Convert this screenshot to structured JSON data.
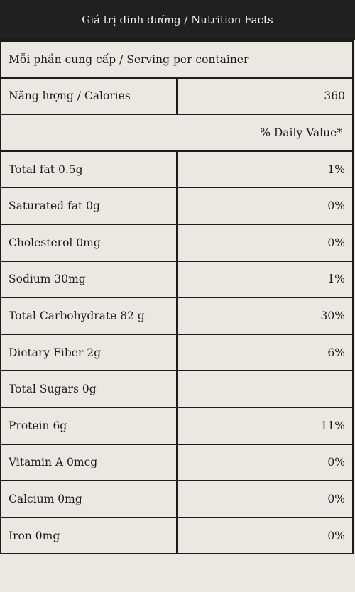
{
  "header": {
    "title": "Giá trị dinh dưỡng / Nutrition Facts"
  },
  "serving": "Mỗi phần cung cấp / Serving per container",
  "calories": {
    "label": "Năng lượng / Calories",
    "value": "360"
  },
  "daily_value_heading": "% Daily Value*",
  "nutrients": [
    {
      "label": "Total fat 0.5g",
      "value": "1%"
    },
    {
      "label": "Saturated fat 0g",
      "value": "0%"
    },
    {
      "label": "Cholesterol 0mg",
      "value": "0%"
    },
    {
      "label": "Sodium 30mg",
      "value": "1%"
    },
    {
      "label": "Total Carbohydrate 82 g",
      "value": "30%"
    },
    {
      "label": "Dietary Fiber 2g",
      "value": "6%"
    },
    {
      "label": "Total Sugars 0g",
      "value": ""
    },
    {
      "label": "Protein 6g",
      "value": "11%"
    },
    {
      "label": "Vitamin A 0mcg",
      "value": "0%"
    },
    {
      "label": "Calcium 0mg",
      "value": "0%"
    },
    {
      "label": "Iron 0mg",
      "value": "0%"
    }
  ]
}
